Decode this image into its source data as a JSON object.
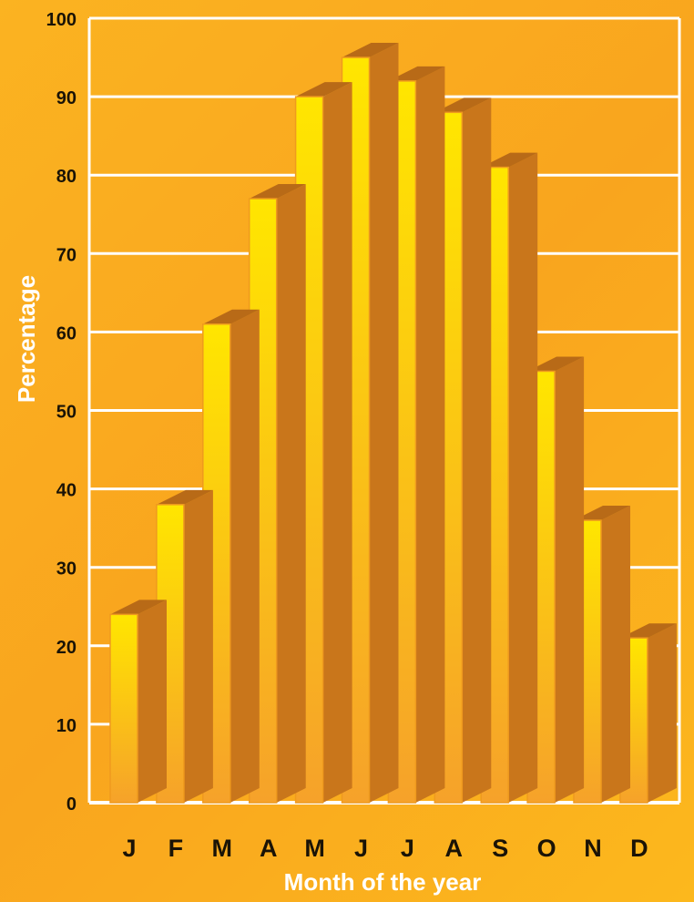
{
  "chart_data": {
    "type": "bar",
    "categories": [
      "J",
      "F",
      "M",
      "A",
      "M",
      "J",
      "J",
      "A",
      "S",
      "O",
      "N",
      "D"
    ],
    "values": [
      24,
      38,
      61,
      77,
      90,
      95,
      92,
      88,
      81,
      55,
      36,
      21
    ],
    "title": "",
    "xlabel": "Month of the year",
    "ylabel": "Percentage",
    "ylim": [
      0,
      100
    ],
    "yticks": [
      "0",
      "10",
      "20",
      "30",
      "40",
      "50",
      "60",
      "70",
      "80",
      "90",
      "100"
    ],
    "grid": true,
    "style": "3d-bar"
  },
  "colors": {
    "background": "#f9a51e",
    "bar_front_top": "#ffe600",
    "bar_front_bottom": "#f6a22a",
    "bar_side": "#c9761b",
    "bar_top": "#b86a17",
    "gridline": "#ffffff",
    "text": "#1a1306",
    "axis_title": "#ffffff"
  }
}
